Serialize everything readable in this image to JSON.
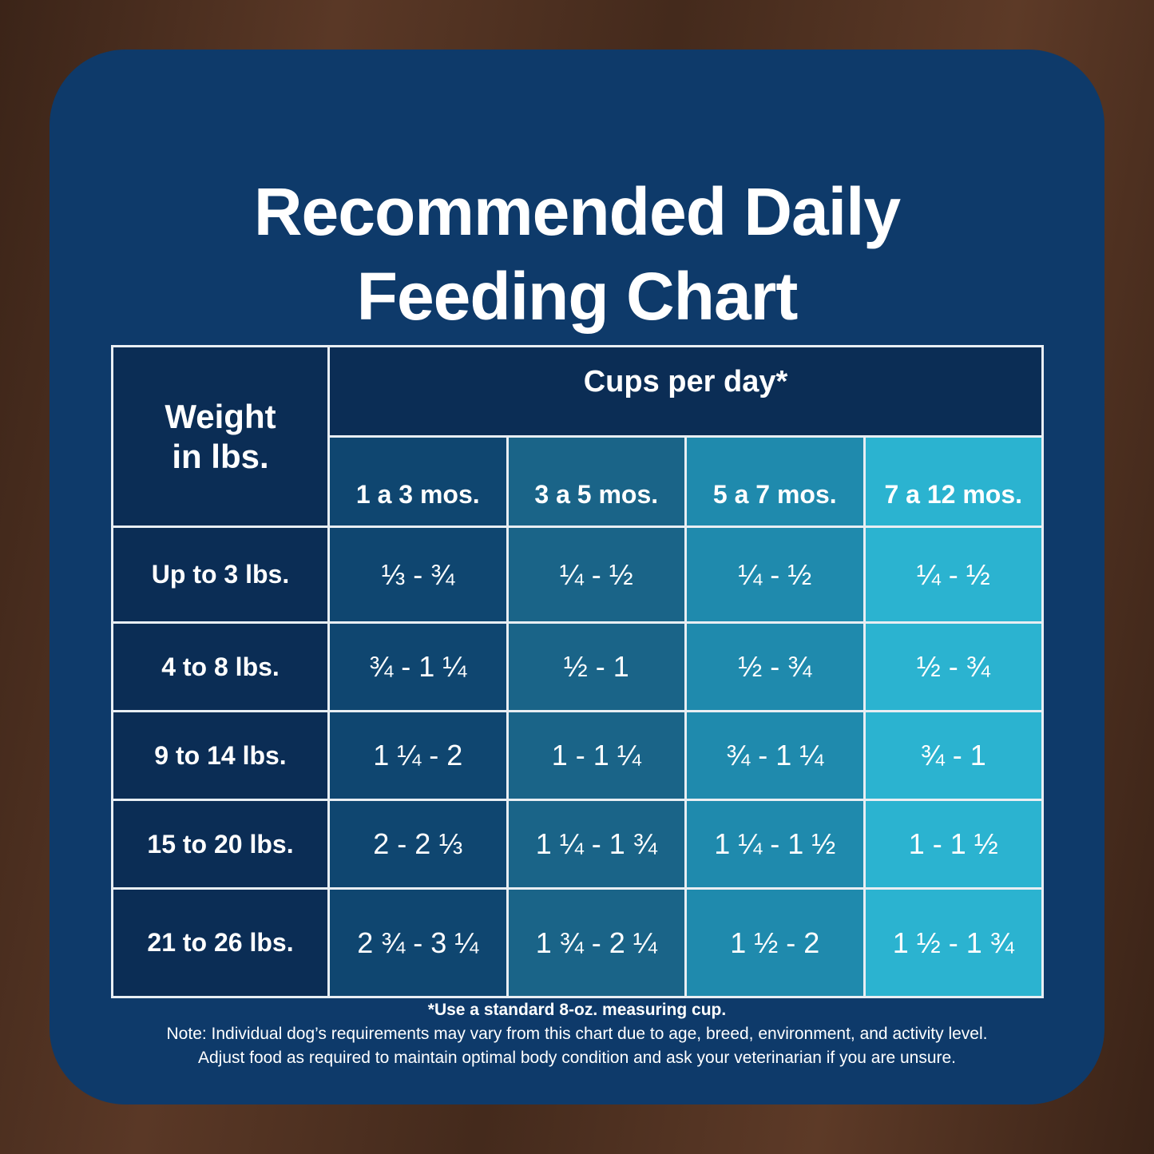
{
  "title_line1": "Recommended Daily",
  "title_line2": "Feeding Chart",
  "colors": {
    "card": "#0e3a6a",
    "weight_col": "#0b2d55",
    "col1": "#0f4670",
    "col2": "#1a6488",
    "col3": "#1f8aad",
    "col4": "#2bb3d0"
  },
  "chart_data": {
    "type": "table",
    "title": "Recommended Daily Feeding Chart",
    "row_header": "Weight in lbs.",
    "group_header": "Cups per day*",
    "columns": [
      "1 a 3 mos.",
      "3 a 5 mos.",
      "5 a 7 mos.",
      "7 a 12 mos."
    ],
    "rows": [
      {
        "weight": "Up to 3 lbs.",
        "values": [
          "⅓ - ¾",
          "¼  - ½",
          "¼  - ½",
          "¼  - ½"
        ]
      },
      {
        "weight": "4 to 8 lbs.",
        "values": [
          "¾ - 1 ¼",
          "½ - 1",
          "½ - ¾",
          "½ - ¾"
        ]
      },
      {
        "weight": "9 to 14 lbs.",
        "values": [
          "1 ¼ - 2",
          "1 - 1 ¼",
          "¾ - 1 ¼",
          "¾ - 1"
        ]
      },
      {
        "weight": "15 to 20 lbs.",
        "values": [
          "2 - 2 ⅓",
          "1 ¼ - 1 ¾",
          "1 ¼ - 1 ½",
          "1 - 1 ½"
        ]
      },
      {
        "weight": "21 to 26 lbs.",
        "values": [
          "2 ¾ - 3 ¼",
          "1 ¾ - 2 ¼",
          "1 ½  - 2",
          "1 ½  - 1 ¾"
        ]
      }
    ]
  },
  "notes": {
    "footnote": "*Use a standard 8-oz. measuring cup.",
    "line1": "Note: Individual dog’s requirements may vary from this chart due to age, breed, environment, and activity level.",
    "line2": "Adjust food as required to maintain optimal body condition and ask your veterinarian if you are unsure."
  }
}
